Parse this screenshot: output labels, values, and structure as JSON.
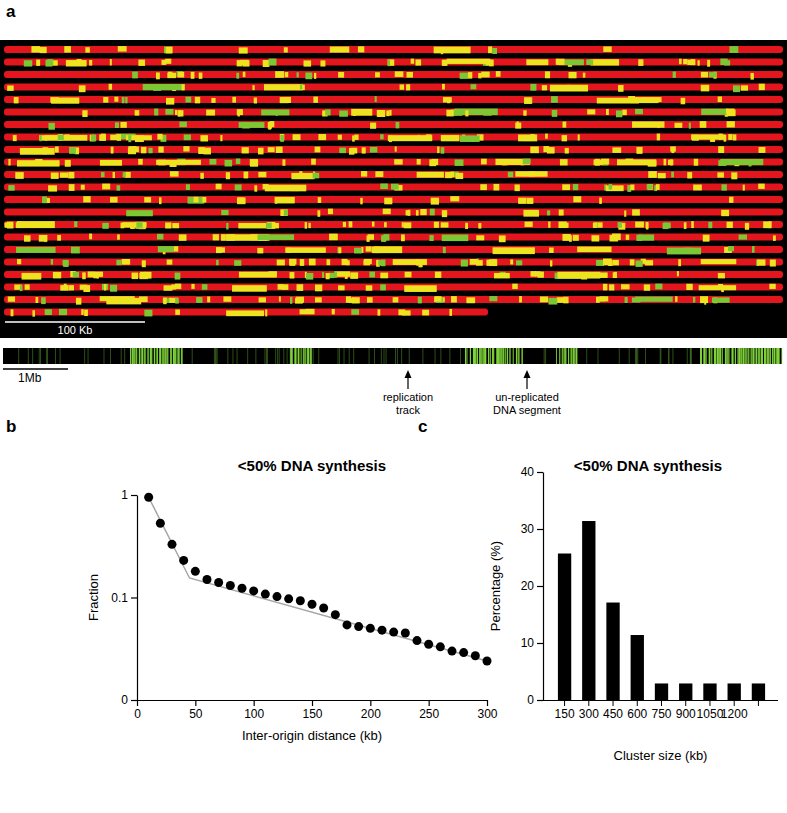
{
  "figure_panel_a": {
    "panel_label": "a",
    "scale_bar": "100 Kb",
    "track_scale_bar": "1Mb",
    "annotations": [
      [
        "replication",
        "track"
      ],
      [
        "un-replicated",
        "DNA segment"
      ]
    ]
  },
  "chart_data": [
    {
      "panel_label": "b",
      "type": "scatter",
      "title": "<50% DNA synthesis",
      "x_label": "Inter-origin distance (kb)",
      "y_label": "Fraction",
      "log": "y",
      "grid": false,
      "xlim": [
        0,
        300
      ],
      "xticks": [
        0,
        50,
        100,
        150,
        200,
        250,
        300
      ],
      "ylim": [
        0.01,
        1
      ],
      "yticks": [
        {
          "value": 0.01,
          "label": "0"
        },
        0.1,
        1
      ],
      "series": [
        {
          "type": "line",
          "line_style": "solid",
          "color": "#a6a6a6",
          "x": [
            10,
            45,
            300
          ],
          "values": [
            0.95,
            0.155,
            0.024
          ]
        },
        {
          "type": "scatter",
          "marker": "circle",
          "color": "#000000",
          "x": [
            10,
            20,
            30,
            40,
            50,
            60,
            70,
            80,
            90,
            100,
            110,
            120,
            130,
            140,
            150,
            160,
            170,
            180,
            190,
            200,
            210,
            220,
            230,
            240,
            250,
            260,
            270,
            280,
            290,
            300
          ],
          "values": [
            0.95,
            0.53,
            0.33,
            0.23,
            0.18,
            0.15,
            0.14,
            0.131,
            0.123,
            0.116,
            0.108,
            0.102,
            0.097,
            0.093,
            0.086,
            0.079,
            0.068,
            0.054,
            0.052,
            0.05,
            0.048,
            0.046,
            0.045,
            0.038,
            0.035,
            0.033,
            0.03,
            0.029,
            0.027,
            0.024
          ]
        }
      ]
    },
    {
      "panel_label": "c",
      "type": "bar",
      "title": "<50% DNA synthesis",
      "x_label": "Cluster size (kb)",
      "y_label": "Percentage (%)",
      "grid": false,
      "color": "#000000",
      "categories": [
        "150",
        "300",
        "450",
        "600",
        "750",
        "900",
        "1050",
        "1200",
        null
      ],
      "values": [
        25.7,
        31.4,
        17.1,
        11.4,
        2.9,
        2.9,
        2.9,
        2.9,
        2.9
      ],
      "ylim": [
        0,
        40
      ],
      "yticks": [
        0,
        10,
        20,
        30,
        40
      ]
    }
  ]
}
